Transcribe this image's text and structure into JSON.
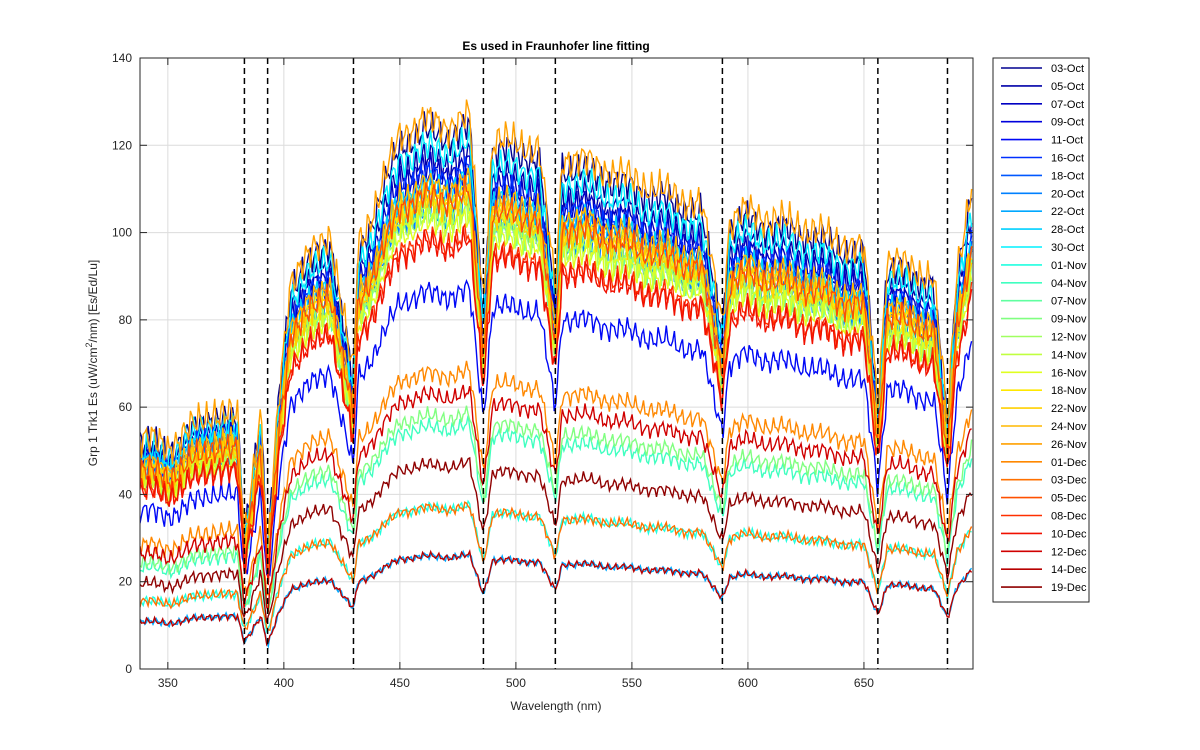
{
  "chart_data": {
    "type": "line",
    "title": "Es used in Fraunhofer line fitting",
    "xlabel": "Wavelength (nm)",
    "ylabel_parts": [
      "Grp 1 Trk1 Es (uW/cm",
      "2",
      "/nm) [Es/Ed/Lu]"
    ],
    "xlim": [
      338,
      697
    ],
    "ylim": [
      0,
      140
    ],
    "xticks": [
      350,
      400,
      450,
      500,
      550,
      600,
      650
    ],
    "yticks": [
      0,
      20,
      40,
      60,
      80,
      100,
      120,
      140
    ],
    "grid": true,
    "legend_position": "outside-right",
    "fraunhofer_lines": [
      383,
      393,
      430,
      486,
      517,
      589,
      656,
      686
    ],
    "series": [
      {
        "name": "03-Oct",
        "color": "#00008f",
        "scale": 1.0
      },
      {
        "name": "05-Oct",
        "color": "#0000a8",
        "scale": 0.95
      },
      {
        "name": "07-Oct",
        "color": "#0000c2",
        "scale": 0.93
      },
      {
        "name": "09-Oct",
        "color": "#0000dc",
        "scale": 0.9
      },
      {
        "name": "11-Oct",
        "color": "#0008f6",
        "scale": 0.7
      },
      {
        "name": "16-Oct",
        "color": "#0030ff",
        "scale": 0.92
      },
      {
        "name": "18-Oct",
        "color": "#0058ff",
        "scale": 0.88
      },
      {
        "name": "20-Oct",
        "color": "#0080ff",
        "scale": 0.86
      },
      {
        "name": "22-Oct",
        "color": "#00a8ff",
        "scale": 0.21
      },
      {
        "name": "28-Oct",
        "color": "#00d0ff",
        "scale": 0.9
      },
      {
        "name": "30-Oct",
        "color": "#00f0ff",
        "scale": 0.97
      },
      {
        "name": "01-Nov",
        "color": "#20ffe0",
        "scale": 0.3
      },
      {
        "name": "04-Nov",
        "color": "#40ffc0",
        "scale": 0.45
      },
      {
        "name": "07-Nov",
        "color": "#60ffa0",
        "scale": 0.85
      },
      {
        "name": "09-Nov",
        "color": "#80ff80",
        "scale": 0.47
      },
      {
        "name": "12-Nov",
        "color": "#a0ff60",
        "scale": 0.84
      },
      {
        "name": "14-Nov",
        "color": "#c0ff40",
        "scale": 0.86
      },
      {
        "name": "16-Nov",
        "color": "#e0ff20",
        "scale": 0.83
      },
      {
        "name": "18-Nov",
        "color": "#ffe800",
        "scale": 0.88
      },
      {
        "name": "22-Nov",
        "color": "#ffd000",
        "scale": 0.87
      },
      {
        "name": "24-Nov",
        "color": "#ffb800",
        "scale": 0.9
      },
      {
        "name": "26-Nov",
        "color": "#ffa000",
        "scale": 1.02
      },
      {
        "name": "01-Dec",
        "color": "#ff8800",
        "scale": 0.55
      },
      {
        "name": "03-Dec",
        "color": "#ff7000",
        "scale": 0.3
      },
      {
        "name": "05-Dec",
        "color": "#ff5000",
        "scale": 0.88
      },
      {
        "name": "08-Dec",
        "color": "#ff3000",
        "scale": 0.8
      },
      {
        "name": "10-Dec",
        "color": "#f01000",
        "scale": 0.79
      },
      {
        "name": "12-Dec",
        "color": "#d00000",
        "scale": 0.51
      },
      {
        "name": "14-Dec",
        "color": "#b80000",
        "scale": 0.21
      },
      {
        "name": "19-Dec",
        "color": "#8f0000",
        "scale": 0.38
      }
    ]
  }
}
